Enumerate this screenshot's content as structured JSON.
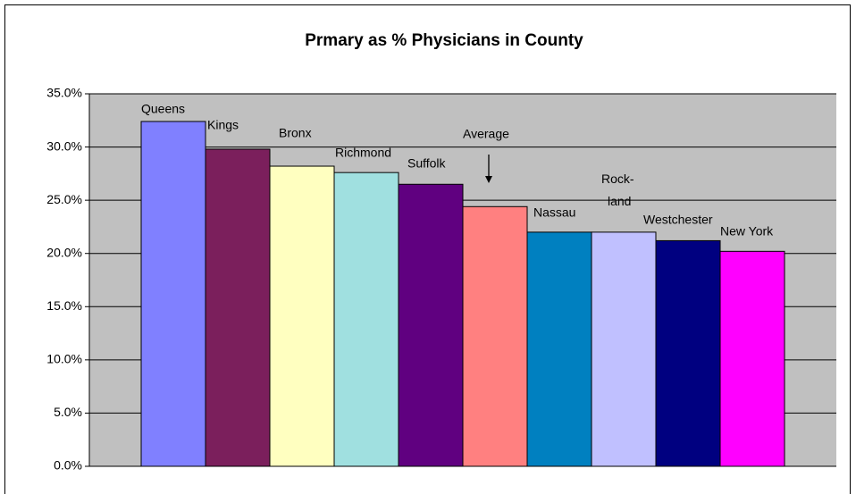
{
  "chart_data": {
    "type": "bar",
    "title": "Prmary as % Physicians in County",
    "categories": [
      "Queens",
      "Kings",
      "Bronx",
      "Richmond",
      "Suffolk",
      "Average",
      "Nassau",
      "Rock-\nland",
      "Westchester",
      "New York"
    ],
    "values": [
      32.4,
      29.8,
      28.2,
      27.6,
      26.5,
      24.4,
      22.0,
      22.0,
      21.2,
      20.2
    ],
    "colors": [
      "#8080ff",
      "#7b1f5c",
      "#ffffc0",
      "#a0e0e0",
      "#600080",
      "#ff8080",
      "#0080c0",
      "#c0c0ff",
      "#000080",
      "#ff00ff"
    ],
    "ylim": [
      0,
      35
    ],
    "yticks": [
      {
        "value": 0,
        "label": "0.0%"
      },
      {
        "value": 5,
        "label": "5.0%"
      },
      {
        "value": 10,
        "label": "10.0%"
      },
      {
        "value": 15,
        "label": "15.0%"
      },
      {
        "value": 20,
        "label": "20.0%"
      },
      {
        "value": 25,
        "label": "25.0%"
      },
      {
        "value": 30,
        "label": "30.0%"
      },
      {
        "value": 35,
        "label": "35.0%"
      }
    ],
    "grid": true
  }
}
